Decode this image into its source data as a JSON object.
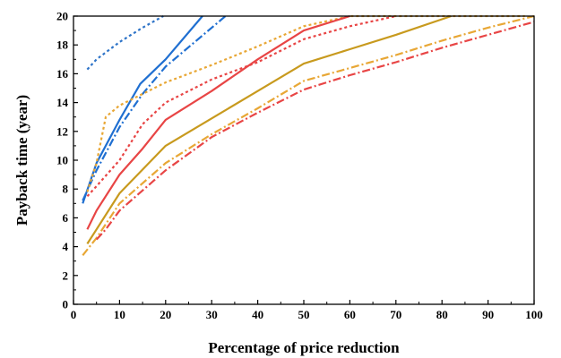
{
  "chart_data": {
    "type": "line",
    "title": "",
    "xlabel": "Percentage of price reduction",
    "ylabel": "Payback time (year)",
    "xlim": [
      0,
      100
    ],
    "ylim": [
      0,
      20
    ],
    "xticks": [
      0,
      10,
      20,
      30,
      40,
      50,
      60,
      70,
      80,
      90,
      100
    ],
    "yticks": [
      0,
      2,
      4,
      6,
      8,
      10,
      12,
      14,
      16,
      18,
      20
    ],
    "grid": false,
    "series": [
      {
        "color": "#2E74C8",
        "style": "dotted",
        "x": [
          3,
          5,
          10,
          15,
          19.5
        ],
        "y": [
          16.3,
          17,
          18.2,
          19.2,
          20
        ]
      },
      {
        "color": "#1F6FD1",
        "style": "solid",
        "x": [
          2,
          5,
          10,
          14.5,
          20,
          28
        ],
        "y": [
          7,
          9.8,
          12.8,
          15.3,
          17,
          20
        ]
      },
      {
        "color": "#1F6FD1",
        "style": "dashdot",
        "x": [
          2,
          5,
          10,
          15,
          20,
          33
        ],
        "y": [
          7.2,
          9.3,
          12.3,
          14.6,
          16.5,
          20
        ]
      },
      {
        "color": "#E8A735",
        "style": "dotted",
        "x": [
          3,
          5,
          7,
          10,
          20,
          30,
          40,
          50,
          60,
          98
        ],
        "y": [
          7.8,
          9.8,
          13,
          13.8,
          15.4,
          16.6,
          17.9,
          19.3,
          20,
          20
        ]
      },
      {
        "color": "#E84545",
        "style": "dotted",
        "x": [
          3,
          5,
          10,
          15,
          20,
          30,
          40,
          50,
          60,
          70
        ],
        "y": [
          7.5,
          8.2,
          10,
          12.5,
          14,
          15.6,
          16.8,
          18.4,
          19.3,
          20
        ]
      },
      {
        "color": "#E84545",
        "style": "solid",
        "x": [
          3,
          5,
          10,
          15,
          20,
          30,
          40,
          50,
          60
        ],
        "y": [
          5.2,
          6.5,
          9,
          10.8,
          12.8,
          14.8,
          17,
          19,
          20
        ]
      },
      {
        "color": "#C89A1E",
        "style": "solid",
        "x": [
          3,
          5,
          10,
          20,
          30,
          40,
          50,
          60,
          70,
          82
        ],
        "y": [
          4.2,
          5.2,
          7.7,
          11,
          12.9,
          14.8,
          16.7,
          17.7,
          18.7,
          20
        ]
      },
      {
        "color": "#E8A735",
        "style": "dashdot",
        "x": [
          2,
          5,
          10,
          20,
          30,
          40,
          50,
          60,
          70,
          80,
          90,
          100
        ],
        "y": [
          3.4,
          4.6,
          7,
          9.8,
          11.8,
          13.6,
          15.5,
          16.4,
          17.3,
          18.3,
          19.2,
          20
        ]
      },
      {
        "color": "#E84545",
        "style": "dashdot",
        "x": [
          5,
          7,
          10,
          20,
          30,
          40,
          50,
          60,
          70,
          80,
          90,
          100
        ],
        "y": [
          4.5,
          5.2,
          6.5,
          9.3,
          11.6,
          13.3,
          14.9,
          15.9,
          16.8,
          17.8,
          18.7,
          19.6
        ]
      }
    ]
  }
}
